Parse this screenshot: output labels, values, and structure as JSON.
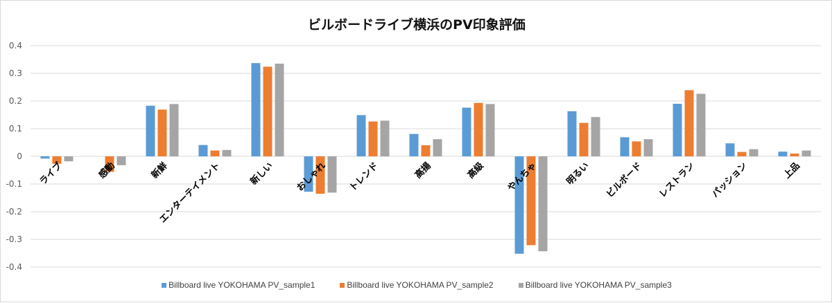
{
  "chart_data": {
    "type": "bar",
    "title": "ビルボードライブ横浜のPV印象評価",
    "xlabel": "",
    "ylabel": "",
    "ylim": [
      -0.4,
      0.4
    ],
    "yticks": [
      0.4,
      0.3,
      0.2,
      0.1,
      0,
      -0.1,
      -0.2,
      -0.3,
      -0.4
    ],
    "ytick_labels": [
      "0.4",
      "0.3",
      "0.2",
      "0.1",
      "0",
      "-0.1",
      "-0.2",
      "-0.3",
      "-0.4"
    ],
    "grid": true,
    "legend_position": "bottom",
    "categories": [
      "ライブ",
      "感動",
      "新鮮",
      "エンターテイメント",
      "新しい",
      "おしゃれ",
      "トレンド",
      "高揚",
      "高級",
      "やんちゃ",
      "明るい",
      "ビルボード",
      "レストラン",
      "パッション",
      "上品"
    ],
    "series": [
      {
        "name": "Billboard live YOKOHAMA PV_sample1",
        "color": "#5b9bd5",
        "values": [
          -0.008,
          0.0,
          0.183,
          0.041,
          0.337,
          -0.128,
          0.149,
          0.081,
          0.176,
          -0.352,
          0.163,
          0.069,
          0.19,
          0.047,
          0.017
        ]
      },
      {
        "name": "Billboard live YOKOHAMA PV_sample2",
        "color": "#ed7d31",
        "values": [
          -0.027,
          -0.056,
          0.169,
          0.021,
          0.324,
          -0.135,
          0.126,
          0.04,
          0.193,
          -0.321,
          0.121,
          0.054,
          0.239,
          0.016,
          0.01
        ]
      },
      {
        "name": "Billboard live YOKOHAMA PV_sample3",
        "color": "#a5a5a5",
        "values": [
          -0.018,
          -0.032,
          0.189,
          0.023,
          0.335,
          -0.131,
          0.129,
          0.062,
          0.189,
          -0.343,
          0.142,
          0.062,
          0.226,
          0.026,
          0.021
        ]
      }
    ]
  }
}
